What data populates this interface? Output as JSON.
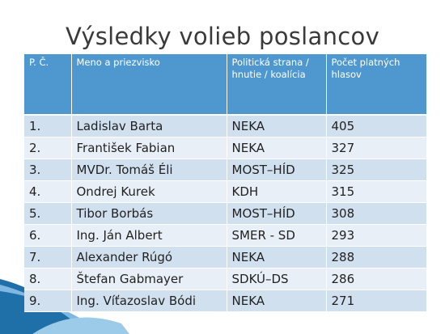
{
  "title": "Výsledky volieb poslancov",
  "table": {
    "header": [
      "P. Č.",
      "Meno a priezvisko",
      "Politická strana / hnutie / koalícia",
      "Počet platných hlasov"
    ],
    "rows": [
      [
        "1.",
        "Ladislav Barta",
        "NEKA",
        405
      ],
      [
        "2.",
        "František Fabian",
        "NEKA",
        327
      ],
      [
        "3.",
        "MVDr. Tomáš Éli",
        "MOST–HÍD",
        325
      ],
      [
        "4.",
        "Ondrej Kurek",
        "KDH",
        315
      ],
      [
        "5.",
        "Tibor Borbás",
        "MOST–HÍD",
        308
      ],
      [
        "6.",
        "Ing. Ján Albert",
        "SMER - SD",
        293
      ],
      [
        "7.",
        "Alexander Rúgó",
        "NEKA",
        288
      ],
      [
        "8.",
        "Štefan Gabmayer",
        "SDKÚ–DS",
        286
      ],
      [
        "9.",
        "Ing. Víťazoslav Bódi",
        "NEKA",
        271
      ]
    ]
  }
}
